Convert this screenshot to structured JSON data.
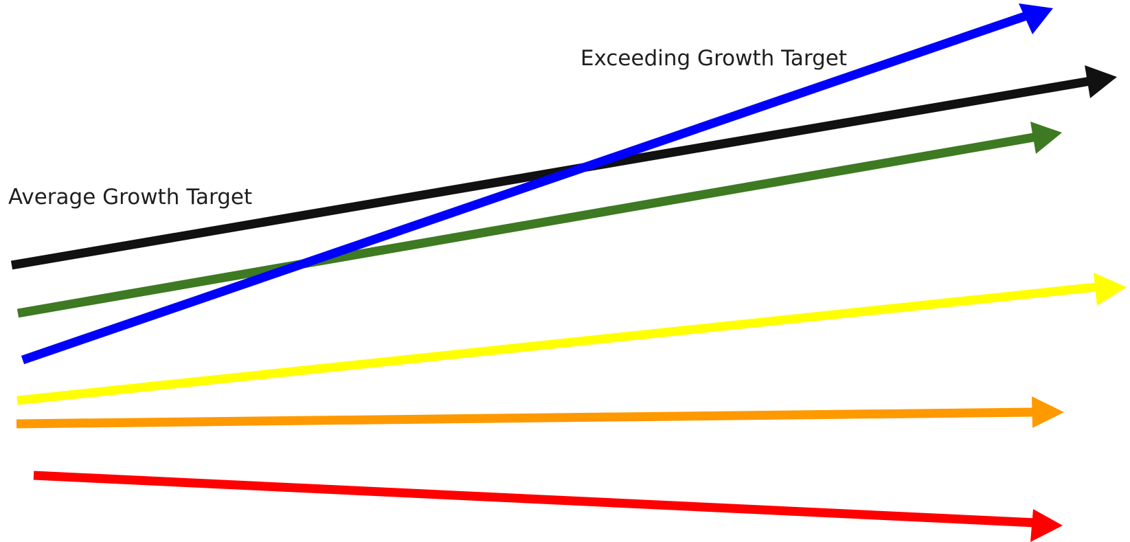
{
  "labels": {
    "average_growth_target": "Average Growth Target",
    "exceeding_growth_target": "Exceeding Growth Target"
  },
  "arrows": [
    {
      "name": "black-arrow",
      "color": "#111111"
    },
    {
      "name": "green-arrow",
      "color": "#3d7a22"
    },
    {
      "name": "blue-arrow",
      "color": "#0000ff"
    },
    {
      "name": "yellow-arrow",
      "color": "#ffff00"
    },
    {
      "name": "orange-arrow",
      "color": "#ff9900"
    },
    {
      "name": "red-arrow",
      "color": "#ff0000"
    }
  ]
}
